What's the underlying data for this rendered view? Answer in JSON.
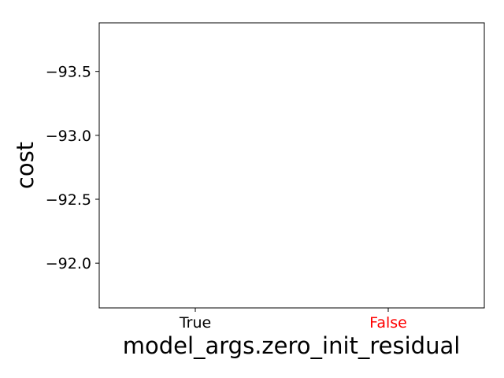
{
  "chart_data": {
    "type": "scatter",
    "title": "",
    "xlabel": "model_args.zero_init_residual",
    "ylabel": "cost",
    "categories": [
      "True",
      "False"
    ],
    "category_colors": [
      "#000000",
      "#ff0000"
    ],
    "ylim": [
      -91.65,
      -93.88
    ],
    "y_inverted": true,
    "yticks": [
      -93.5,
      -93.0,
      -92.5,
      -92.0
    ],
    "ytick_labels": [
      "−93.5",
      "−93.0",
      "−92.5",
      "−92.0"
    ],
    "grid": false,
    "series": []
  }
}
